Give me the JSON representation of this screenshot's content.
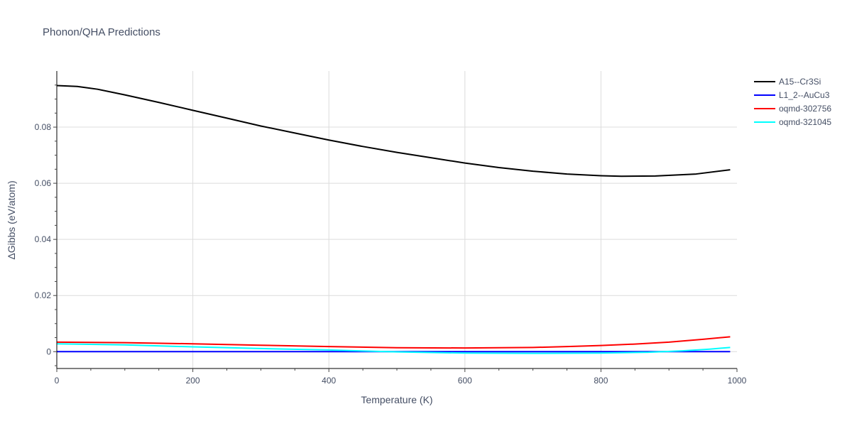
{
  "chart_data": {
    "type": "line",
    "title": "Phonon/QHA Predictions",
    "xlabel": "Temperature (K)",
    "ylabel": "ΔGibbs (eV/atom)",
    "xlim": [
      0,
      1000
    ],
    "ylim": [
      -0.006,
      0.1
    ],
    "x_ticks": [
      0,
      200,
      400,
      600,
      800,
      1000
    ],
    "x_tick_labels": [
      "0",
      "200",
      "400",
      "600",
      "800",
      "1000"
    ],
    "y_ticks": [
      0,
      0.02,
      0.04,
      0.06,
      0.08
    ],
    "y_tick_labels": [
      "0",
      "0.02",
      "0.04",
      "0.06",
      "0.08"
    ],
    "grid": true,
    "legend_position": "top-right outside",
    "series": [
      {
        "name": "A15--Cr3Si",
        "color": "#000000",
        "x": [
          0,
          30,
          60,
          100,
          150,
          200,
          250,
          300,
          350,
          400,
          450,
          500,
          550,
          600,
          650,
          700,
          750,
          800,
          830,
          880,
          940,
          990
        ],
        "y": [
          0.0948,
          0.0945,
          0.0935,
          0.0915,
          0.0888,
          0.086,
          0.0832,
          0.0804,
          0.0779,
          0.0754,
          0.0731,
          0.071,
          0.0691,
          0.0672,
          0.0656,
          0.0643,
          0.0633,
          0.0627,
          0.0625,
          0.0626,
          0.0633,
          0.0648
        ]
      },
      {
        "name": "L1_2--AuCu3",
        "color": "#0000ff",
        "x": [
          0,
          200,
          400,
          600,
          800,
          990
        ],
        "y": [
          0,
          0,
          0,
          0,
          0,
          0
        ]
      },
      {
        "name": "oqmd-302756",
        "color": "#ff0000",
        "x": [
          0,
          100,
          200,
          300,
          400,
          500,
          600,
          700,
          750,
          800,
          850,
          900,
          950,
          990
        ],
        "y": [
          0.0034,
          0.0032,
          0.0028,
          0.0023,
          0.0018,
          0.0014,
          0.0013,
          0.0015,
          0.0018,
          0.0022,
          0.0027,
          0.0034,
          0.0044,
          0.0053
        ]
      },
      {
        "name": "oqmd-321045",
        "color": "#00ffff",
        "x": [
          0,
          100,
          200,
          300,
          400,
          500,
          600,
          700,
          800,
          870,
          920,
          960,
          990
        ],
        "y": [
          0.0028,
          0.0024,
          0.0017,
          0.0011,
          0.0006,
          -0.0001,
          -0.0005,
          -0.0006,
          -0.0005,
          -0.0002,
          0.0003,
          0.0009,
          0.0015
        ]
      }
    ]
  }
}
